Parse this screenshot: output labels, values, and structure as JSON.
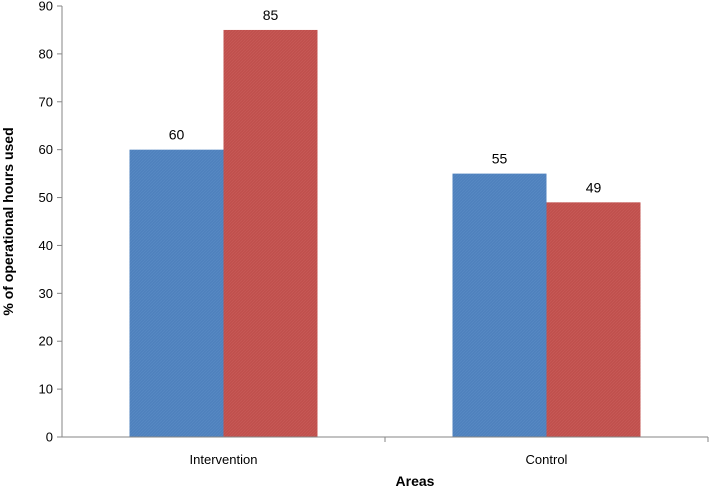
{
  "chart_data": {
    "type": "bar",
    "title": "",
    "xlabel": "Areas",
    "ylabel": "% of operational hours used",
    "categories": [
      "Intervention",
      "Control"
    ],
    "series": [
      {
        "values": [
          60,
          55
        ],
        "color": "#4f81bd"
      },
      {
        "values": [
          85,
          49
        ],
        "color": "#c0504d"
      }
    ],
    "ylim": [
      0,
      90
    ],
    "yticks": [
      0,
      10,
      20,
      30,
      40,
      50,
      60,
      70,
      80,
      90
    ],
    "grid": false,
    "legend": "none"
  }
}
